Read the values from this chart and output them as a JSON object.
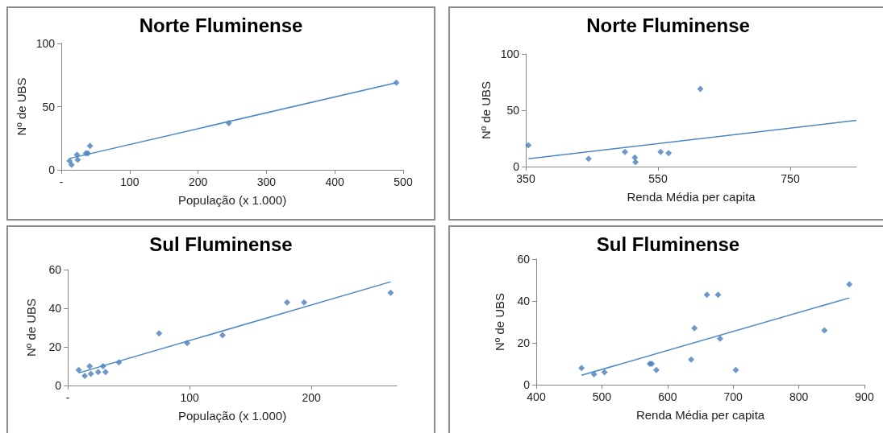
{
  "chart_data": [
    {
      "type": "scatter",
      "title": "Norte Fluminense",
      "xlabel": "População (x 1.000)",
      "ylabel": "Nº de UBS",
      "xlim": [
        0,
        500
      ],
      "xticks": [
        {
          "value": 0,
          "label": "-"
        },
        100,
        200,
        300,
        400,
        500
      ],
      "ylim": [
        0,
        100
      ],
      "yticks": [
        0,
        50,
        100
      ],
      "series": [
        {
          "color": "#4a7ebb",
          "marker": "diamond",
          "x": [
            12,
            15,
            23,
            24,
            36,
            39,
            42,
            245,
            490
          ],
          "values": [
            7,
            4,
            12,
            8,
            13,
            13,
            19,
            37,
            69
          ]
        },
        {
          "type": "line",
          "marker": "none",
          "color": "#4a86c8",
          "x": [
            12,
            490
          ],
          "values": [
            9,
            69
          ]
        }
      ]
    },
    {
      "type": "scatter",
      "title": "Norte Fluminense",
      "xlabel": "Renda Média per capita",
      "ylabel": "Nº de UBS",
      "xlim": [
        350,
        850
      ],
      "xticks": [
        350,
        550,
        750
      ],
      "ylim": [
        0,
        100
      ],
      "yticks": [
        0,
        50,
        100
      ],
      "series": [
        {
          "color": "#4a7ebb",
          "marker": "diamond",
          "x": [
            354,
            445,
            500,
            515,
            516,
            554,
            566,
            614
          ],
          "values": [
            19,
            7,
            13,
            8,
            4,
            13,
            12,
            69
          ]
        },
        {
          "type": "line",
          "marker": "none",
          "color": "#4a86c8",
          "x": [
            354,
            850
          ],
          "values": [
            7,
            41
          ]
        }
      ]
    },
    {
      "type": "scatter",
      "title": "Sul Fluminense",
      "xlabel": "População (x 1.000)",
      "ylabel": "Nº de UBS",
      "xlim": [
        0,
        270
      ],
      "xticks": [
        {
          "value": 0,
          "label": "-"
        },
        100,
        200
      ],
      "ylim": [
        0,
        60
      ],
      "yticks": [
        0,
        20,
        40,
        60
      ],
      "series": [
        {
          "color": "#4a7ebb",
          "marker": "diamond",
          "x": [
            9,
            14,
            18,
            19,
            25,
            29,
            31,
            42,
            75,
            98,
            127,
            180,
            194,
            265
          ],
          "values": [
            8,
            5,
            10,
            6,
            7,
            10,
            7,
            12,
            27,
            22,
            26,
            43,
            43,
            48
          ]
        },
        {
          "type": "line",
          "marker": "none",
          "color": "#4a86c8",
          "x": [
            9,
            265
          ],
          "values": [
            6.5,
            53.7
          ]
        }
      ]
    },
    {
      "type": "scatter",
      "title": "Sul Fluminense",
      "xlabel": "Renda Média per capita",
      "ylabel": "Nº de UBS",
      "xlim": [
        400,
        900
      ],
      "xticks": [
        400,
        500,
        600,
        700,
        800,
        900
      ],
      "ylim": [
        0,
        60
      ],
      "yticks": [
        0,
        20,
        40,
        60
      ],
      "series": [
        {
          "color": "#4a7ebb",
          "marker": "diamond",
          "x": [
            469,
            488,
            504,
            573,
            576,
            583,
            636,
            641,
            660,
            677,
            680,
            704,
            839,
            877
          ],
          "values": [
            8,
            5,
            6,
            10,
            10,
            7,
            12,
            27,
            43,
            43,
            22,
            7,
            26,
            48
          ]
        },
        {
          "type": "line",
          "marker": "none",
          "color": "#4a86c8",
          "x": [
            469,
            877
          ],
          "values": [
            4.5,
            41.5
          ]
        }
      ]
    }
  ]
}
